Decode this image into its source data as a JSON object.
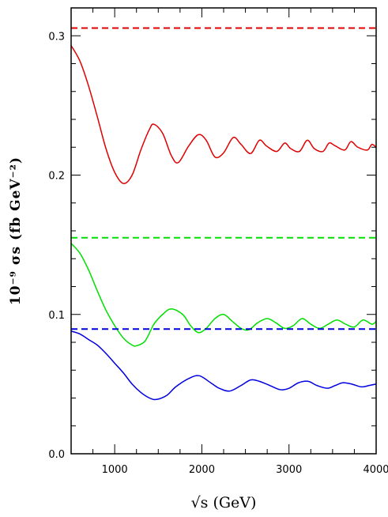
{
  "chart_data": {
    "type": "line",
    "title": "",
    "xlabel": "√s (GeV)",
    "ylabel": "10⁻⁹ σs (fb GeV⁻²)",
    "xlim": [
      500,
      4000
    ],
    "ylim": [
      0,
      0.32
    ],
    "x_ticks": [
      {
        "value": 1000,
        "label": "1000"
      },
      {
        "value": 2000,
        "label": "2000"
      },
      {
        "value": 3000,
        "label": "3000"
      },
      {
        "value": 4000,
        "label": "4000"
      }
    ],
    "y_ticks": [
      {
        "value": 0.0,
        "label": "0.0"
      },
      {
        "value": 0.1,
        "label": "0.1"
      },
      {
        "value": 0.2,
        "label": "0.2"
      },
      {
        "value": 0.3,
        "label": "0.3"
      }
    ],
    "grid": false,
    "series": [
      {
        "color": "#e00000",
        "style": "dashed",
        "x": [
          500,
          4000
        ],
        "y": [
          0.3055,
          0.3055
        ]
      },
      {
        "color": "#e00000",
        "style": "solid",
        "x": [
          500,
          600,
          700,
          800,
          900,
          1000,
          1100,
          1200,
          1300,
          1400,
          1450,
          1550,
          1650,
          1730,
          1850,
          1960,
          2050,
          2150,
          2250,
          2360,
          2450,
          2560,
          2660,
          2740,
          2860,
          2950,
          3020,
          3120,
          3210,
          3290,
          3390,
          3460,
          3530,
          3640,
          3710,
          3790,
          3900,
          3950,
          4000
        ],
        "y": [
          0.293,
          0.282,
          0.264,
          0.242,
          0.219,
          0.202,
          0.194,
          0.2,
          0.218,
          0.233,
          0.2365,
          0.23,
          0.214,
          0.209,
          0.221,
          0.229,
          0.225,
          0.213,
          0.216,
          0.227,
          0.222,
          0.2155,
          0.225,
          0.221,
          0.217,
          0.223,
          0.219,
          0.217,
          0.225,
          0.219,
          0.217,
          0.223,
          0.221,
          0.218,
          0.224,
          0.22,
          0.218,
          0.222,
          0.22
        ]
      },
      {
        "color": "#00e000",
        "style": "dashed",
        "x": [
          500,
          4000
        ],
        "y": [
          0.155,
          0.155
        ]
      },
      {
        "color": "#00e000",
        "style": "solid",
        "x": [
          500,
          600,
          700,
          800,
          900,
          1000,
          1100,
          1200,
          1250,
          1350,
          1450,
          1550,
          1650,
          1780,
          1870,
          1960,
          2050,
          2150,
          2250,
          2350,
          2450,
          2540,
          2640,
          2750,
          2850,
          2950,
          3050,
          3150,
          3250,
          3350,
          3450,
          3550,
          3650,
          3750,
          3850,
          3950,
          4000
        ],
        "y": [
          0.151,
          0.144,
          0.132,
          0.117,
          0.103,
          0.092,
          0.083,
          0.078,
          0.0775,
          0.081,
          0.093,
          0.1,
          0.104,
          0.1,
          0.092,
          0.087,
          0.09,
          0.097,
          0.1,
          0.095,
          0.09,
          0.089,
          0.094,
          0.097,
          0.094,
          0.09,
          0.092,
          0.097,
          0.093,
          0.09,
          0.093,
          0.096,
          0.093,
          0.091,
          0.096,
          0.093,
          0.095
        ]
      },
      {
        "color": "#0000e0",
        "style": "dashed",
        "x": [
          500,
          4000
        ],
        "y": [
          0.0895,
          0.0895
        ]
      },
      {
        "color": "#0000e0",
        "style": "solid",
        "x": [
          500,
          600,
          700,
          800,
          900,
          1000,
          1100,
          1200,
          1300,
          1400,
          1480,
          1600,
          1700,
          1850,
          1970,
          2100,
          2200,
          2320,
          2450,
          2560,
          2660,
          2780,
          2900,
          3000,
          3110,
          3220,
          3320,
          3440,
          3530,
          3620,
          3720,
          3830,
          3920,
          4000
        ],
        "y": [
          0.088,
          0.086,
          0.082,
          0.078,
          0.072,
          0.065,
          0.058,
          0.05,
          0.044,
          0.04,
          0.039,
          0.042,
          0.048,
          0.054,
          0.056,
          0.051,
          0.047,
          0.045,
          0.049,
          0.053,
          0.052,
          0.049,
          0.046,
          0.047,
          0.051,
          0.052,
          0.049,
          0.047,
          0.049,
          0.051,
          0.05,
          0.048,
          0.049,
          0.05
        ]
      }
    ]
  }
}
